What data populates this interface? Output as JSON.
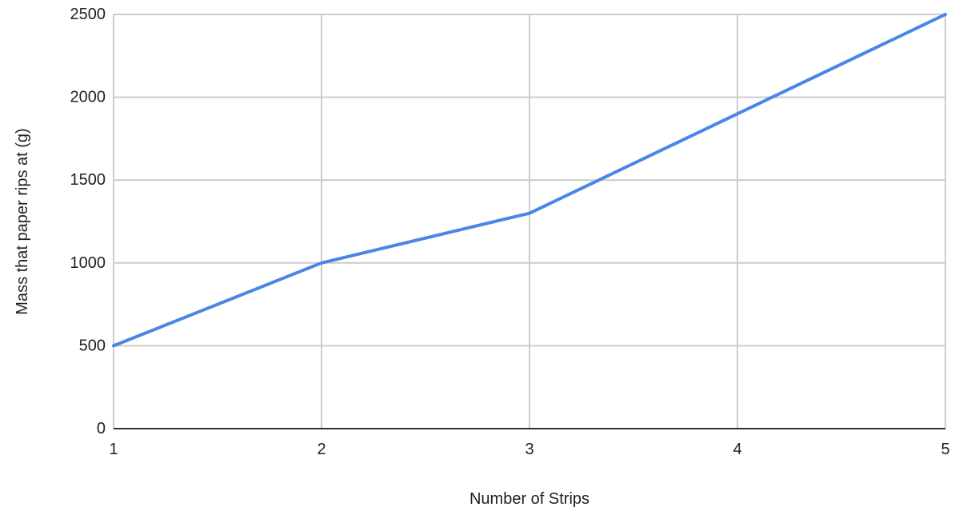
{
  "chart_data": {
    "type": "line",
    "title": "",
    "xlabel": "Number of Strips",
    "ylabel": "Mass that paper rips at (g)",
    "x": [
      1,
      2,
      3,
      4,
      5
    ],
    "xlim": [
      1,
      5
    ],
    "ylim": [
      0,
      2500
    ],
    "xticks": [
      1,
      2,
      3,
      4,
      5
    ],
    "yticks": [
      0,
      500,
      1000,
      1500,
      2000,
      2500
    ],
    "grid": true,
    "legend": "none",
    "series": [
      {
        "values": [
          500,
          1000,
          1300,
          1900,
          2500
        ],
        "color": "#4a86e8"
      }
    ],
    "colors": {
      "grid": "#cccccc",
      "axis": "#333333",
      "text": "#222222"
    }
  }
}
